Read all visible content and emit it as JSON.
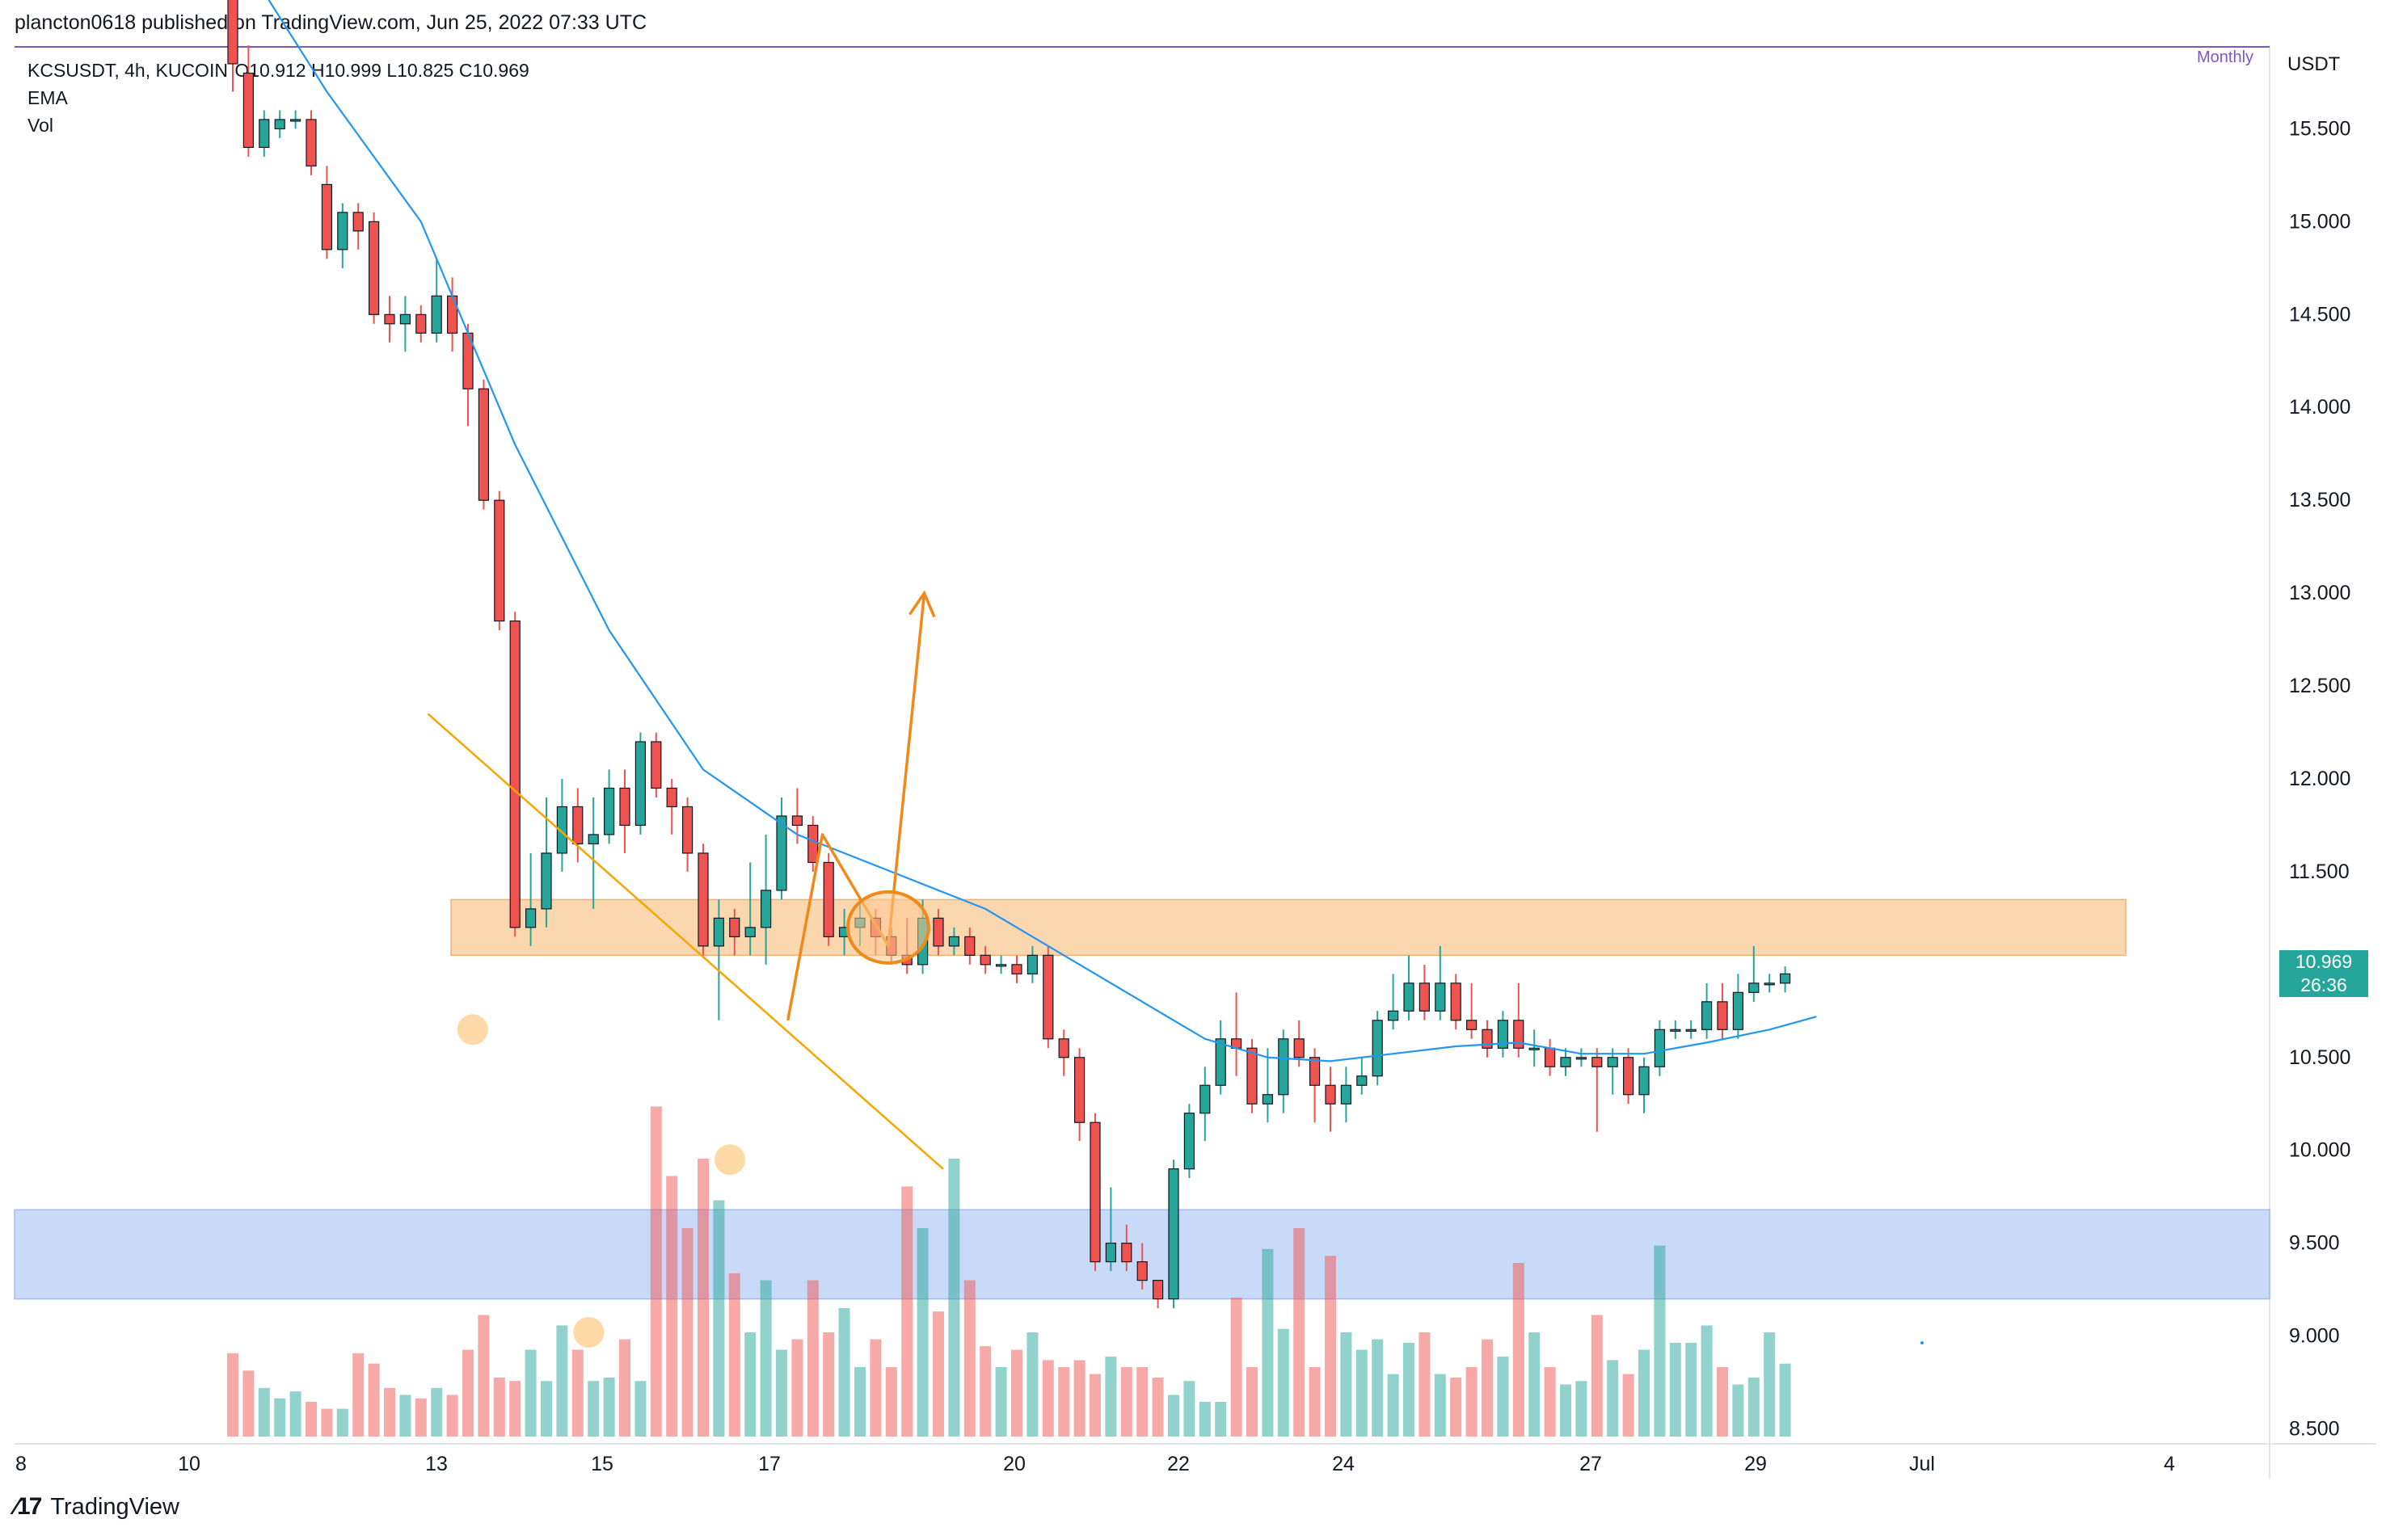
{
  "header": {
    "publisher": "plancton0618 published on TradingView.com, Jun 25, 2022 07:33 UTC"
  },
  "legend": {
    "symbol": "KCSUSDT, 4h, KUCOIN",
    "ohlc": "O10.912  H10.999  L10.825  C10.969",
    "ema": "EMA",
    "vol": "Vol"
  },
  "monthly_label": "Monthly",
  "price_axis_unit": "USDT",
  "last_price": {
    "value": "10.969",
    "countdown": "26:36",
    "color": "#26a69a"
  },
  "footer": {
    "logo_text": "TradingView"
  },
  "colors": {
    "up": "#26a69a",
    "down": "#ef5350",
    "ema": "#2196f3",
    "trend": "#f7a600",
    "projection": "#ef8a1a",
    "resistance_zone": "#fbd7b0",
    "support_zone": "#c6d9f7"
  },
  "chart_data": {
    "type": "candlestick",
    "x_tick_labels": [
      "8",
      "10",
      "13",
      "15",
      "17",
      "20",
      "22",
      "24",
      "27",
      "29",
      "Jul",
      "4"
    ],
    "y_tick_labels": [
      "15.500",
      "15.000",
      "14.500",
      "14.000",
      "13.500",
      "13.000",
      "12.500",
      "12.000",
      "11.500",
      "11.000",
      "10.500",
      "10.000",
      "9.500",
      "9.000",
      "8.500"
    ],
    "y_axis_range": [
      8.45,
      15.95
    ],
    "candles": [
      [
        16.2,
        15.85,
        16.3,
        15.7
      ],
      [
        15.8,
        15.4,
        15.95,
        15.35
      ],
      [
        15.4,
        15.55,
        15.6,
        15.35
      ],
      [
        15.5,
        15.55,
        15.6,
        15.45
      ],
      [
        15.55,
        15.55,
        15.6,
        15.5
      ],
      [
        15.55,
        15.3,
        15.6,
        15.25
      ],
      [
        15.2,
        14.85,
        15.3,
        14.8
      ],
      [
        14.85,
        15.05,
        15.1,
        14.75
      ],
      [
        15.05,
        14.95,
        15.1,
        14.85
      ],
      [
        15.0,
        14.5,
        15.05,
        14.45
      ],
      [
        14.5,
        14.45,
        14.6,
        14.35
      ],
      [
        14.45,
        14.5,
        14.6,
        14.3
      ],
      [
        14.5,
        14.4,
        14.55,
        14.35
      ],
      [
        14.4,
        14.6,
        14.8,
        14.35
      ],
      [
        14.6,
        14.4,
        14.7,
        14.3
      ],
      [
        14.4,
        14.1,
        14.45,
        13.9
      ],
      [
        14.1,
        13.5,
        14.15,
        13.45
      ],
      [
        13.5,
        12.85,
        13.55,
        12.8
      ],
      [
        12.85,
        11.2,
        12.9,
        11.15
      ],
      [
        11.2,
        11.3,
        11.6,
        11.1
      ],
      [
        11.3,
        11.6,
        11.9,
        11.2
      ],
      [
        11.6,
        11.85,
        12.0,
        11.5
      ],
      [
        11.85,
        11.65,
        11.95,
        11.55
      ],
      [
        11.65,
        11.7,
        11.9,
        11.3
      ],
      [
        11.7,
        11.95,
        12.05,
        11.65
      ],
      [
        11.95,
        11.75,
        12.05,
        11.6
      ],
      [
        11.75,
        12.2,
        12.25,
        11.7
      ],
      [
        12.2,
        11.95,
        12.25,
        11.9
      ],
      [
        11.95,
        11.85,
        12.0,
        11.7
      ],
      [
        11.85,
        11.6,
        11.9,
        11.5
      ],
      [
        11.6,
        11.1,
        11.65,
        11.05
      ],
      [
        11.1,
        11.25,
        11.35,
        10.7
      ],
      [
        11.25,
        11.15,
        11.3,
        11.05
      ],
      [
        11.15,
        11.2,
        11.55,
        11.05
      ],
      [
        11.2,
        11.4,
        11.7,
        11.0
      ],
      [
        11.4,
        11.8,
        11.9,
        11.35
      ],
      [
        11.8,
        11.75,
        11.95,
        11.65
      ],
      [
        11.75,
        11.55,
        11.8,
        11.5
      ],
      [
        11.55,
        11.15,
        11.6,
        11.1
      ],
      [
        11.15,
        11.2,
        11.3,
        11.05
      ],
      [
        11.2,
        11.25,
        11.35,
        11.1
      ],
      [
        11.25,
        11.15,
        11.3,
        11.05
      ],
      [
        11.15,
        11.05,
        11.2,
        11.0
      ],
      [
        11.05,
        11.0,
        11.25,
        10.95
      ],
      [
        11.0,
        11.25,
        11.35,
        10.95
      ],
      [
        11.25,
        11.1,
        11.3,
        11.05
      ],
      [
        11.1,
        11.15,
        11.2,
        11.05
      ],
      [
        11.15,
        11.05,
        11.2,
        11.0
      ],
      [
        11.05,
        11.0,
        11.1,
        10.95
      ],
      [
        11.0,
        11.0,
        11.05,
        10.95
      ],
      [
        11.0,
        10.95,
        11.05,
        10.9
      ],
      [
        10.95,
        11.05,
        11.1,
        10.9
      ],
      [
        11.05,
        10.6,
        11.1,
        10.55
      ],
      [
        10.6,
        10.5,
        10.65,
        10.4
      ],
      [
        10.5,
        10.15,
        10.55,
        10.05
      ],
      [
        10.15,
        9.4,
        10.2,
        9.35
      ],
      [
        9.4,
        9.5,
        9.8,
        9.35
      ],
      [
        9.5,
        9.4,
        9.6,
        9.35
      ],
      [
        9.4,
        9.3,
        9.5,
        9.25
      ],
      [
        9.3,
        9.2,
        9.3,
        9.15
      ],
      [
        9.2,
        9.9,
        9.95,
        9.15
      ],
      [
        9.9,
        10.2,
        10.25,
        9.85
      ],
      [
        10.2,
        10.35,
        10.45,
        10.05
      ],
      [
        10.35,
        10.6,
        10.7,
        10.3
      ],
      [
        10.6,
        10.55,
        10.85,
        10.4
      ],
      [
        10.55,
        10.25,
        10.6,
        10.2
      ],
      [
        10.25,
        10.3,
        10.55,
        10.15
      ],
      [
        10.3,
        10.6,
        10.65,
        10.2
      ],
      [
        10.6,
        10.5,
        10.7,
        10.45
      ],
      [
        10.5,
        10.35,
        10.55,
        10.15
      ],
      [
        10.35,
        10.25,
        10.45,
        10.1
      ],
      [
        10.25,
        10.35,
        10.45,
        10.15
      ],
      [
        10.35,
        10.4,
        10.5,
        10.3
      ],
      [
        10.4,
        10.7,
        10.75,
        10.35
      ],
      [
        10.7,
        10.75,
        10.95,
        10.65
      ],
      [
        10.75,
        10.9,
        11.05,
        10.7
      ],
      [
        10.9,
        10.75,
        11.0,
        10.7
      ],
      [
        10.75,
        10.9,
        11.1,
        10.7
      ],
      [
        10.9,
        10.7,
        10.95,
        10.65
      ],
      [
        10.7,
        10.65,
        10.9,
        10.6
      ],
      [
        10.65,
        10.55,
        10.7,
        10.5
      ],
      [
        10.55,
        10.7,
        10.75,
        10.5
      ],
      [
        10.7,
        10.55,
        10.9,
        10.5
      ],
      [
        10.55,
        10.55,
        10.65,
        10.45
      ],
      [
        10.55,
        10.45,
        10.6,
        10.4
      ],
      [
        10.45,
        10.5,
        10.55,
        10.4
      ],
      [
        10.5,
        10.5,
        10.55,
        10.45
      ],
      [
        10.5,
        10.45,
        10.55,
        10.1
      ],
      [
        10.45,
        10.5,
        10.55,
        10.3
      ],
      [
        10.5,
        10.3,
        10.55,
        10.25
      ],
      [
        10.3,
        10.45,
        10.5,
        10.2
      ],
      [
        10.45,
        10.65,
        10.7,
        10.4
      ],
      [
        10.65,
        10.65,
        10.7,
        10.6
      ],
      [
        10.65,
        10.65,
        10.7,
        10.6
      ],
      [
        10.65,
        10.8,
        10.9,
        10.6
      ],
      [
        10.8,
        10.65,
        10.9,
        10.6
      ],
      [
        10.65,
        10.85,
        10.95,
        10.6
      ],
      [
        10.85,
        10.9,
        11.1,
        10.8
      ],
      [
        10.9,
        10.9,
        10.95,
        10.85
      ],
      [
        10.9,
        10.95,
        10.99,
        10.85
      ]
    ],
    "volumes": [
      0.24,
      0.19,
      0.14,
      0.11,
      0.13,
      0.1,
      0.08,
      0.08,
      0.24,
      0.21,
      0.14,
      0.12,
      0.11,
      0.14,
      0.12,
      0.25,
      0.35,
      0.17,
      0.16,
      0.25,
      0.16,
      0.32,
      0.25,
      0.16,
      0.17,
      0.28,
      0.16,
      0.95,
      0.75,
      0.6,
      0.8,
      0.68,
      0.47,
      0.3,
      0.45,
      0.25,
      0.28,
      0.45,
      0.3,
      0.37,
      0.2,
      0.28,
      0.2,
      0.72,
      0.6,
      0.36,
      0.8,
      0.45,
      0.26,
      0.2,
      0.25,
      0.3,
      0.22,
      0.2,
      0.22,
      0.18,
      0.23,
      0.2,
      0.2,
      0.17,
      0.12,
      0.16,
      0.1,
      0.1,
      0.4,
      0.2,
      0.54,
      0.31,
      0.6,
      0.2,
      0.52,
      0.3,
      0.25,
      0.28,
      0.18,
      0.27,
      0.3,
      0.18,
      0.17,
      0.2,
      0.28,
      0.23,
      0.5,
      0.3,
      0.2,
      0.15,
      0.16,
      0.35,
      0.22,
      0.18,
      0.25,
      0.55,
      0.27,
      0.27,
      0.32,
      0.2,
      0.15,
      0.17,
      0.3,
      0.21
    ],
    "ema": [
      [
        0,
        16.5
      ],
      [
        6,
        15.7
      ],
      [
        12,
        15.0
      ],
      [
        18,
        13.8
      ],
      [
        24,
        12.8
      ],
      [
        30,
        12.05
      ],
      [
        36,
        11.7
      ],
      [
        42,
        11.5
      ],
      [
        48,
        11.3
      ],
      [
        54,
        11.0
      ],
      [
        58,
        10.8
      ],
      [
        62,
        10.6
      ],
      [
        66,
        10.5
      ],
      [
        70,
        10.48
      ],
      [
        74,
        10.52
      ],
      [
        78,
        10.56
      ],
      [
        82,
        10.58
      ],
      [
        86,
        10.52
      ],
      [
        90,
        10.52
      ],
      [
        94,
        10.58
      ],
      [
        98,
        10.65
      ],
      [
        101,
        10.72
      ]
    ],
    "annotations": {
      "resistance_zone": [
        11.05,
        11.35
      ],
      "support_zone": [
        9.2,
        9.68
      ],
      "trendline": [
        [
          12.45,
          12.35
        ],
        [
          45.3,
          9.9
        ]
      ],
      "projection_path": [
        [
          35.4,
          10.7
        ],
        [
          37.6,
          11.7
        ],
        [
          41.8,
          11.1
        ],
        [
          44.1,
          13.0
        ]
      ],
      "target_circle_center": [
        41.8,
        11.2
      ],
      "low_markers": [
        [
          15.3,
          10.65
        ],
        [
          31.7,
          9.95
        ],
        [
          22.7,
          9.02
        ]
      ]
    }
  }
}
